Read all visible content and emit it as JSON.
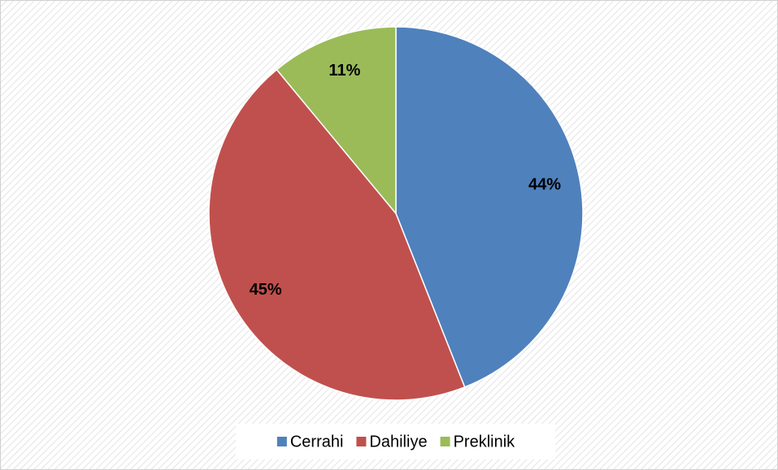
{
  "chart_data": {
    "type": "pie",
    "categories": [
      "Cerrahi",
      "Dahiliye",
      "Preklinik"
    ],
    "values": [
      44,
      45,
      11
    ],
    "value_labels": [
      "44%",
      "45%",
      "11%"
    ],
    "colors": [
      "#4f81bd",
      "#c0504d",
      "#9bbb59"
    ],
    "legend": "bottom"
  }
}
